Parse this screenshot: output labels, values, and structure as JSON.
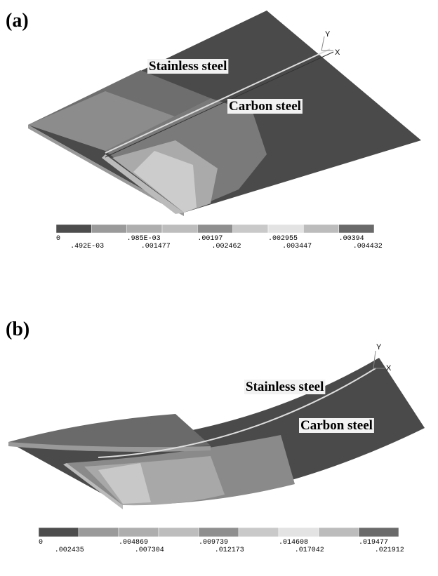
{
  "panels": [
    {
      "label": "(a)",
      "annotations": [
        "Stainless steel",
        "Carbon steel"
      ],
      "axes": [
        "Y",
        "X"
      ],
      "legend": [
        "0",
        ".492E-03",
        ".985E-03",
        ".001477",
        ".00197",
        ".002462",
        ".002955",
        ".003447",
        ".00394",
        ".004432"
      ]
    },
    {
      "label": "(b)",
      "annotations": [
        "Stainless steel",
        "Carbon steel"
      ],
      "axes": [
        "Y",
        "X"
      ],
      "legend": [
        "0",
        ".002435",
        ".004869",
        ".007304",
        ".009739",
        ".012173",
        ".014608",
        ".017042",
        ".019477",
        ".021912"
      ]
    }
  ]
}
